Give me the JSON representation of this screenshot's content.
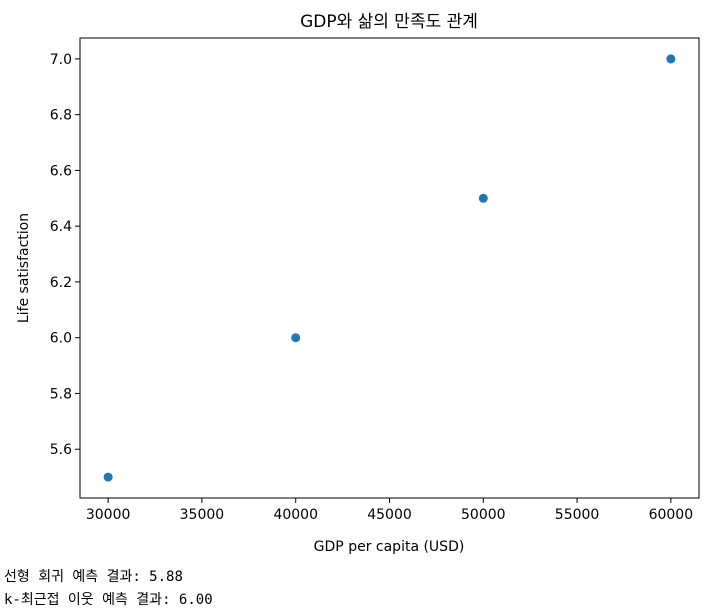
{
  "chart_data": {
    "type": "scatter",
    "title": "GDP와 삶의 만족도 관계",
    "xlabel": "GDP per capita (USD)",
    "ylabel": "Life satisfaction",
    "x": [
      30000,
      40000,
      50000,
      60000
    ],
    "y": [
      5.5,
      6.0,
      6.5,
      7.0
    ],
    "xlim": [
      28500,
      61500
    ],
    "ylim": [
      5.425,
      7.075
    ],
    "xticks": [
      30000,
      35000,
      40000,
      45000,
      50000,
      55000,
      60000
    ],
    "yticks": [
      5.6,
      5.8,
      6.0,
      6.2,
      6.4,
      6.6,
      6.8,
      7.0
    ],
    "xtick_labels": [
      "30000",
      "35000",
      "40000",
      "45000",
      "50000",
      "55000",
      "60000"
    ],
    "ytick_labels": [
      "5.6",
      "5.8",
      "6.0",
      "6.2",
      "6.4",
      "6.6",
      "6.8",
      "7.0"
    ],
    "point_color": "#1f77b4",
    "grid": false,
    "legend": "none"
  },
  "output": {
    "line1": "선형 회귀 예측 결과: 5.88",
    "line2": "k-최근접 이웃 예측 결과: 6.00"
  }
}
